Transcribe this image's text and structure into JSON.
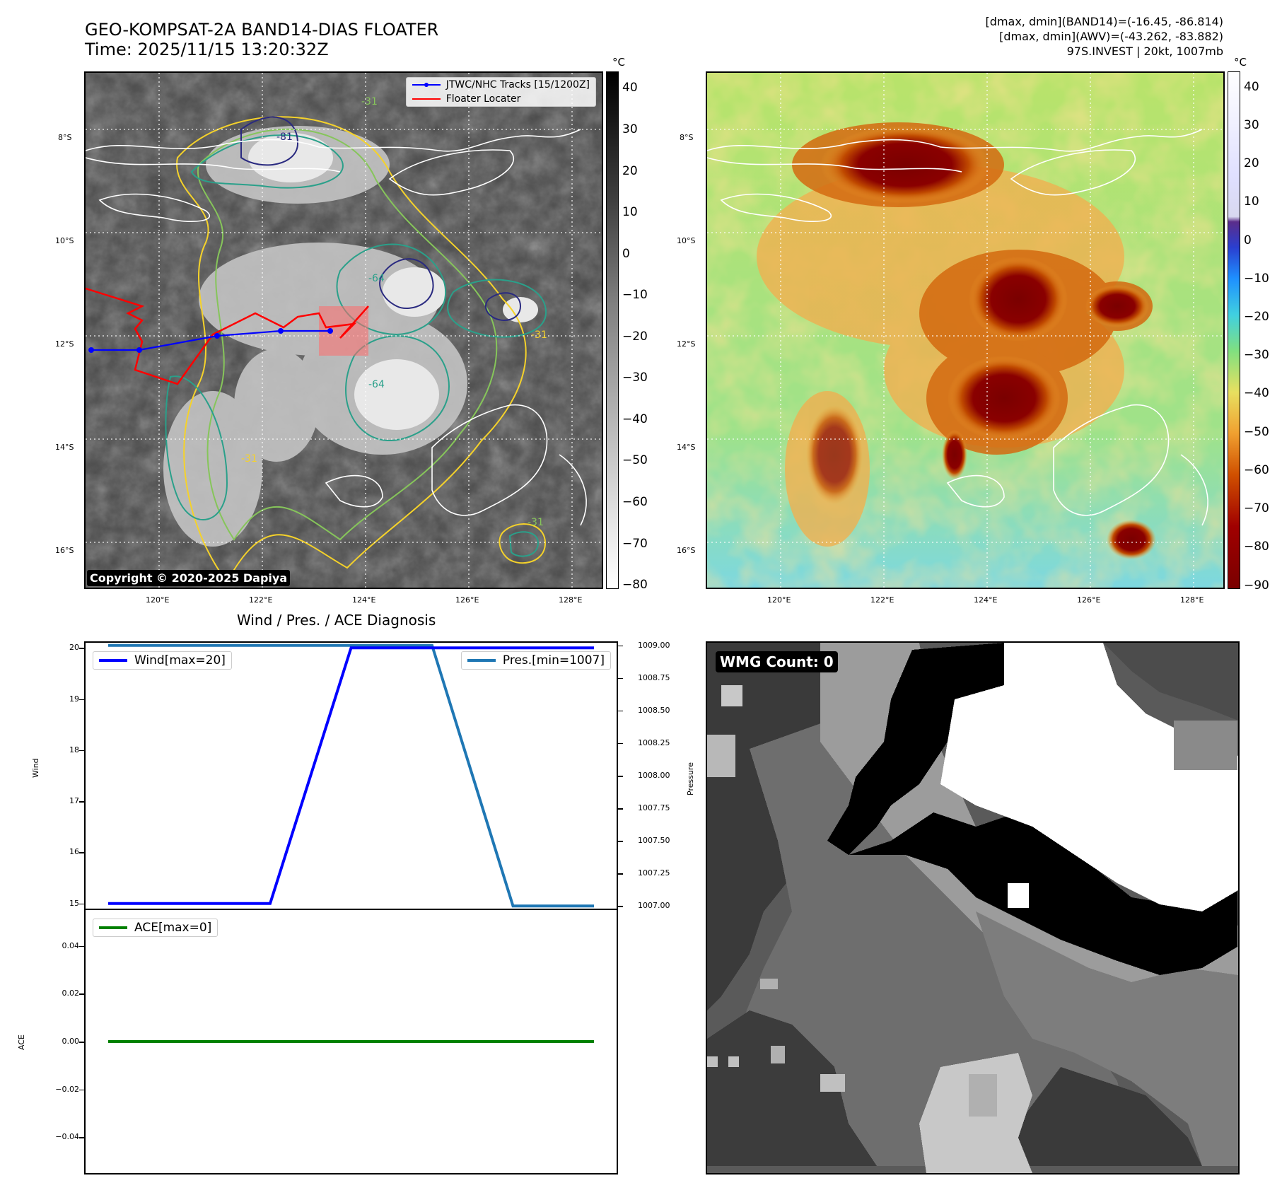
{
  "header": {
    "title_line1": "GEO-KOMPSAT-2A BAND14-DIAS FLOATER",
    "title_line2": "Time: 2025/11/15 13:20:32Z",
    "info_line1": "[dmax, dmin](BAND14)=(-16.45, -86.814)",
    "info_line2": "[dmax, dmin](AWV)=(-43.262, -83.882)",
    "info_line3": "97S.INVEST | 20kt, 1007mb"
  },
  "map": {
    "lat_labels": [
      "8°S",
      "10°S",
      "12°S",
      "14°S",
      "16°S"
    ],
    "lon_labels": [
      "120°E",
      "122°E",
      "124°E",
      "126°E",
      "128°E"
    ],
    "copyright": "Copyright © 2020-2025 Dapiya",
    "contour_labels": [
      "-31",
      "-64",
      "-81"
    ],
    "legend": {
      "track_label": "JTWC/NHC Tracks [15/1200Z]",
      "floater_label": "Floater Locater"
    },
    "colors": {
      "track": "#0000ff",
      "floater": "#ff0000",
      "contour_yellow": "#f5d22a",
      "contour_green": "#86c55a",
      "contour_teal": "#2aa08a",
      "contour_navy": "#2a2a80",
      "coast": "#ffffff"
    }
  },
  "colorbar_left": {
    "unit": "°C",
    "ticks": [
      "40",
      "30",
      "20",
      "10",
      "0",
      "−10",
      "−20",
      "−30",
      "−40",
      "−50",
      "−60",
      "−70",
      "−80"
    ]
  },
  "colorbar_right": {
    "unit": "°C",
    "ticks": [
      "40",
      "30",
      "20",
      "10",
      "0",
      "−10",
      "−20",
      "−30",
      "−40",
      "−50",
      "−60",
      "−70",
      "−80",
      "−90"
    ]
  },
  "diagnosis": {
    "title": "Wind / Pres. / ACE Diagnosis",
    "wind_ylabel": "Wind",
    "pres_ylabel": "Pressure",
    "ace_ylabel": "ACE",
    "wind_legend": "Wind[max=20]",
    "pres_legend": "Pres.[min=1007]",
    "ace_legend": "ACE[max=0]",
    "wind_ticks": [
      "20",
      "19",
      "18",
      "17",
      "16",
      "15"
    ],
    "pres_ticks": [
      "1009.00",
      "1008.75",
      "1008.50",
      "1008.25",
      "1008.00",
      "1007.75",
      "1007.50",
      "1007.25",
      "1007.00"
    ],
    "ace_ticks": [
      "0.04",
      "0.02",
      "0.00",
      "−0.02",
      "−0.04"
    ],
    "colors": {
      "wind": "#0000ff",
      "pres": "#1f77b4",
      "ace": "#008000"
    }
  },
  "wmg": {
    "badge": "WMG Count: 0"
  },
  "chart_data": [
    {
      "type": "line",
      "title": "Wind / Pres. / ACE Diagnosis",
      "ylabel": "Wind",
      "x": [
        0,
        1,
        2,
        3,
        4,
        5,
        6
      ],
      "series": [
        {
          "name": "Wind[max=20]",
          "values": [
            15,
            15,
            15,
            20,
            20,
            20,
            20
          ]
        }
      ],
      "ylim": [
        14.9,
        20.1
      ]
    },
    {
      "type": "line",
      "ylabel": "Pressure",
      "x": [
        0,
        1,
        2,
        3,
        4,
        5,
        6
      ],
      "series": [
        {
          "name": "Pres.[min=1007]",
          "values": [
            1009,
            1009,
            1009,
            1009,
            1009,
            1007,
            1007
          ]
        }
      ],
      "ylim": [
        1006.98,
        1009.02
      ]
    },
    {
      "type": "line",
      "ylabel": "ACE",
      "x": [
        0,
        1,
        2,
        3,
        4,
        5,
        6
      ],
      "series": [
        {
          "name": "ACE[max=0]",
          "values": [
            0,
            0,
            0,
            0,
            0,
            0,
            0
          ]
        }
      ],
      "ylim": [
        -0.055,
        0.055
      ]
    }
  ]
}
